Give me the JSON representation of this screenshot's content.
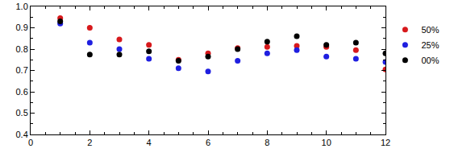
{
  "chart_data": {
    "type": "scatter",
    "x": [
      1,
      2,
      3,
      4,
      5,
      6,
      7,
      8,
      9,
      10,
      11,
      12
    ],
    "series": [
      {
        "name": "50%",
        "color": "#d7191c",
        "marker": "circle",
        "values": [
          0.945,
          0.9,
          0.845,
          0.82,
          0.75,
          0.78,
          0.805,
          0.81,
          0.815,
          0.81,
          0.795,
          0.705
        ]
      },
      {
        "name": "25%",
        "color": "#1f1fe0",
        "marker": "circle",
        "values": [
          0.92,
          0.83,
          0.8,
          0.755,
          0.71,
          0.695,
          0.745,
          0.78,
          0.795,
          0.765,
          0.755,
          0.74
        ]
      },
      {
        "name": "00%",
        "color": "#000000",
        "marker": "circle",
        "values": [
          0.93,
          0.775,
          0.775,
          0.79,
          0.745,
          0.765,
          0.8,
          0.835,
          0.86,
          0.82,
          0.83,
          0.78
        ]
      }
    ],
    "xlim": [
      0,
      12
    ],
    "xticks": [
      0,
      2,
      4,
      6,
      8,
      10,
      12
    ],
    "ylim": [
      0.4,
      1.0
    ],
    "yticks": [
      0.4,
      0.5,
      0.6,
      0.7,
      0.8,
      0.9,
      {
        "value": 1.0,
        "label": "1.0"
      }
    ],
    "grid": false,
    "legend": "right"
  }
}
